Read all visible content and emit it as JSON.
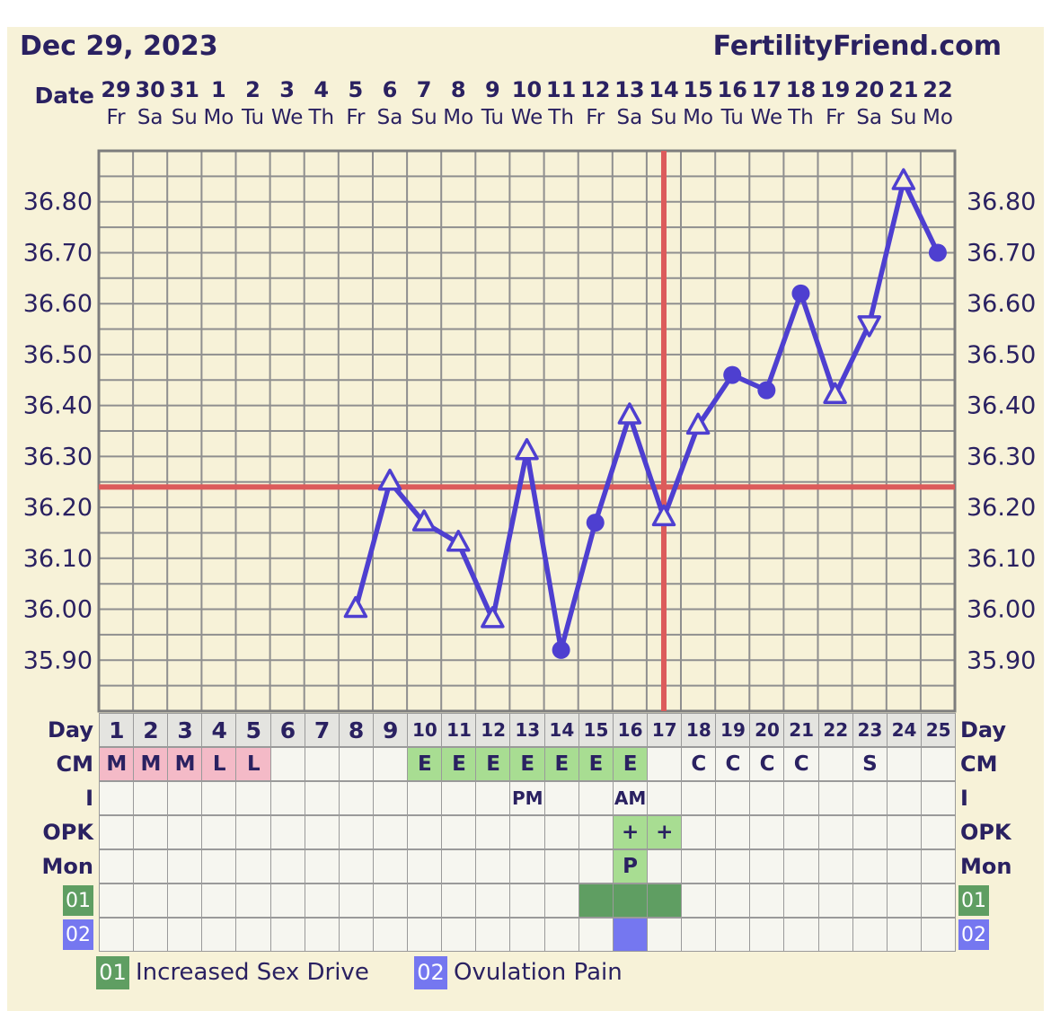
{
  "header": {
    "date_title": "Dec 29, 2023",
    "site": "FertilityFriend.com"
  },
  "date_axis": {
    "label": "Date",
    "dates": [
      "29",
      "30",
      "31",
      "1",
      "2",
      "3",
      "4",
      "5",
      "6",
      "7",
      "8",
      "9",
      "10",
      "11",
      "12",
      "13",
      "14",
      "15",
      "16",
      "17",
      "18",
      "19",
      "20",
      "21",
      "22"
    ],
    "weekdays": [
      "Fr",
      "Sa",
      "Su",
      "Mo",
      "Tu",
      "We",
      "Th",
      "Fr",
      "Sa",
      "Su",
      "Mo",
      "Tu",
      "We",
      "Th",
      "Fr",
      "Sa",
      "Su",
      "Mo",
      "Tu",
      "We",
      "Th",
      "Fr",
      "Sa",
      "Su",
      "Mo"
    ]
  },
  "chart_data": {
    "type": "line",
    "x_label": "Cycle Day",
    "x_range": [
      1,
      25
    ],
    "y_unit": "C",
    "ylim": [
      35.8,
      36.9
    ],
    "y_grid_step": 0.05,
    "y_tick_labels": [
      "36.80",
      "36.70",
      "36.60",
      "36.50",
      "36.40",
      "36.30",
      "36.20",
      "36.10",
      "36.00",
      "35.90"
    ],
    "grid": true,
    "coverline_temp": 36.24,
    "ovulation_line_day": 17,
    "points": [
      {
        "day": 8,
        "temp": 36.0,
        "marker": "open-triangle"
      },
      {
        "day": 9,
        "temp": 36.25,
        "marker": "open-triangle"
      },
      {
        "day": 10,
        "temp": 36.17,
        "marker": "open-triangle"
      },
      {
        "day": 11,
        "temp": 36.13,
        "marker": "open-triangle"
      },
      {
        "day": 12,
        "temp": 35.98,
        "marker": "open-triangle"
      },
      {
        "day": 13,
        "temp": 36.31,
        "marker": "open-triangle"
      },
      {
        "day": 14,
        "temp": 35.92,
        "marker": "filled-circle"
      },
      {
        "day": 15,
        "temp": 36.17,
        "marker": "filled-circle"
      },
      {
        "day": 16,
        "temp": 36.38,
        "marker": "open-triangle"
      },
      {
        "day": 17,
        "temp": 36.18,
        "marker": "open-triangle"
      },
      {
        "day": 18,
        "temp": 36.36,
        "marker": "open-triangle"
      },
      {
        "day": 19,
        "temp": 36.46,
        "marker": "filled-circle"
      },
      {
        "day": 20,
        "temp": 36.43,
        "marker": "filled-circle"
      },
      {
        "day": 21,
        "temp": 36.62,
        "marker": "filled-circle"
      },
      {
        "day": 22,
        "temp": 36.42,
        "marker": "open-triangle"
      },
      {
        "day": 23,
        "temp": 36.56,
        "marker": "open-triangle-down"
      },
      {
        "day": 24,
        "temp": 36.84,
        "marker": "open-triangle"
      },
      {
        "day": 25,
        "temp": 36.7,
        "marker": "filled-circle"
      }
    ]
  },
  "table": {
    "day_row": {
      "label": "Day",
      "numbers": [
        "1",
        "2",
        "3",
        "4",
        "5",
        "6",
        "7",
        "8",
        "9",
        "10",
        "11",
        "12",
        "13",
        "14",
        "15",
        "16",
        "17",
        "18",
        "19",
        "20",
        "21",
        "22",
        "23",
        "24",
        "25"
      ]
    },
    "rows": [
      {
        "name": "cm",
        "label": "CM",
        "cells": {
          "1": [
            "M",
            "pink"
          ],
          "2": [
            "M",
            "pink"
          ],
          "3": [
            "M",
            "pink"
          ],
          "4": [
            "L",
            "pink"
          ],
          "5": [
            "L",
            "pink"
          ],
          "10": [
            "E",
            "grn"
          ],
          "11": [
            "E",
            "grn"
          ],
          "12": [
            "E",
            "grn"
          ],
          "13": [
            "E",
            "grn"
          ],
          "14": [
            "E",
            "grn"
          ],
          "15": [
            "E",
            "grn"
          ],
          "16": [
            "E",
            "grn"
          ],
          "18": [
            "C",
            ""
          ],
          "19": [
            "C",
            ""
          ],
          "20": [
            "C",
            ""
          ],
          "21": [
            "C",
            ""
          ],
          "23": [
            "S",
            ""
          ]
        }
      },
      {
        "name": "i",
        "label": "I",
        "cells": {
          "13": [
            "PM",
            ""
          ],
          "16": [
            "AM",
            ""
          ]
        }
      },
      {
        "name": "opk",
        "label": "OPK",
        "cells": {
          "16": [
            "+",
            "grn"
          ],
          "17": [
            "+",
            "grn"
          ]
        }
      },
      {
        "name": "mon",
        "label": "Mon",
        "cells": {
          "16": [
            "P",
            "grn"
          ]
        }
      },
      {
        "name": "s01",
        "label": "01",
        "badge": "dgrn",
        "cells": {
          "15": [
            "",
            "dgrn"
          ],
          "16": [
            "",
            "dgrn"
          ],
          "17": [
            "",
            "dgrn"
          ]
        }
      },
      {
        "name": "s02",
        "label": "02",
        "badge": "blu",
        "cells": {
          "16": [
            "",
            "blu"
          ]
        }
      }
    ]
  },
  "legend": {
    "items": [
      {
        "code": "01",
        "label": "Increased Sex Drive",
        "color": "#5f9e62"
      },
      {
        "code": "02",
        "label": "Ovulation Pain",
        "color": "#7577f0"
      }
    ]
  },
  "colors": {
    "background": "#ffffff",
    "panel": "#f7f2d8",
    "text_navy": "#2a2161",
    "temp_line": "#4e3fd0",
    "signal_red": "#dc5b5b",
    "grid": "#8f8f8f",
    "cell": "#f6f6f0",
    "cell_header": "#e4e4e0",
    "cm_menses_pink": "#f4bac7",
    "fertile_green": "#a8dd92",
    "symptom_green": "#5f9e62",
    "symptom_blue": "#7577f0"
  }
}
